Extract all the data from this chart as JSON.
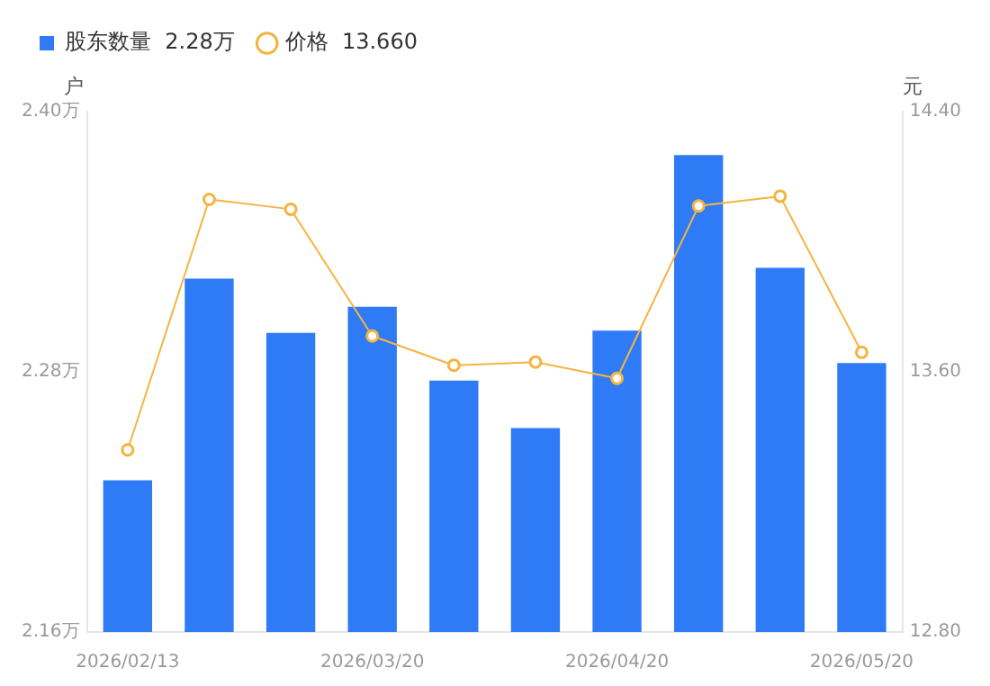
{
  "chart_data": {
    "type": "bar",
    "categories": [
      "2026/02/13",
      null,
      null,
      "2026/03/20",
      null,
      null,
      "2026/04/20",
      null,
      null,
      "2026/05/20"
    ],
    "series": [
      {
        "name": "股东数量  2.28万",
        "color": "#2f7bf5",
        "values": [
          2.23,
          2.323,
          2.298,
          2.31,
          2.276,
          2.254,
          2.299,
          2.38,
          2.328,
          2.284
        ]
      },
      {
        "name": "价格  13.660",
        "type": "line",
        "axis": "y2",
        "color": "#f5b440",
        "values": [
          13.36,
          14.13,
          14.1,
          13.71,
          13.62,
          13.63,
          13.58,
          14.11,
          14.14,
          13.66
        ]
      }
    ],
    "ylabel": "户",
    "y2label": "元",
    "ylim": [
      2.16,
      2.4
    ],
    "yticks": [
      {
        "value": 2.16,
        "label": "2.16万"
      },
      {
        "value": 2.28,
        "label": "2.28万"
      },
      {
        "value": 2.4,
        "label": "2.40万"
      }
    ],
    "y2lim": [
      12.8,
      14.4
    ],
    "y2ticks": [
      {
        "value": 12.8,
        "label": "12.80"
      },
      {
        "value": 13.6,
        "label": "13.60"
      },
      {
        "value": 14.4,
        "label": "14.40"
      }
    ],
    "legend": "top left",
    "marker": "circle",
    "line_style": "solid",
    "grid": false
  }
}
